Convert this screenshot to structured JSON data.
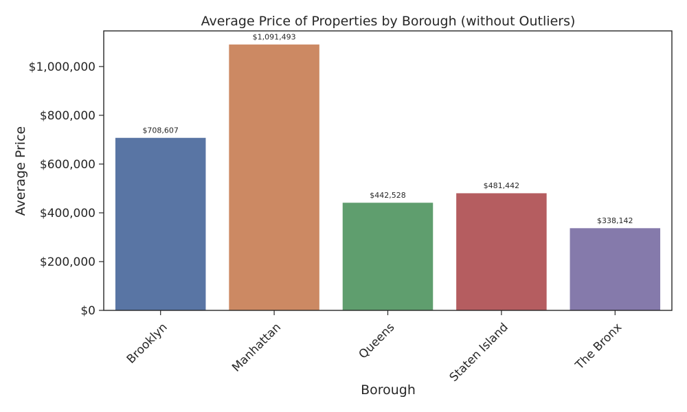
{
  "chart_data": {
    "type": "bar",
    "title": "Average Price of Properties by Borough (without Outliers)",
    "xlabel": "Borough",
    "ylabel": "Average Price",
    "categories": [
      "Brooklyn",
      "Manhattan",
      "Queens",
      "Staten Island",
      "The Bronx"
    ],
    "values": [
      708607,
      1091493,
      442528,
      481442,
      338142
    ],
    "data_labels": [
      "$708,607",
      "$1,091,493",
      "$442,528",
      "$481,442",
      "$338,142"
    ],
    "colors": [
      "#5975a4",
      "#cc8963",
      "#5f9e6e",
      "#b55d60",
      "#857aab"
    ],
    "yticks": [
      0,
      200000,
      400000,
      600000,
      800000,
      1000000
    ],
    "ytick_labels": [
      "$0",
      "$200,000",
      "$400,000",
      "$600,000",
      "$800,000",
      "$1,000,000"
    ],
    "ylim": [
      0,
      1146068
    ],
    "grid": false,
    "legend": "none"
  }
}
